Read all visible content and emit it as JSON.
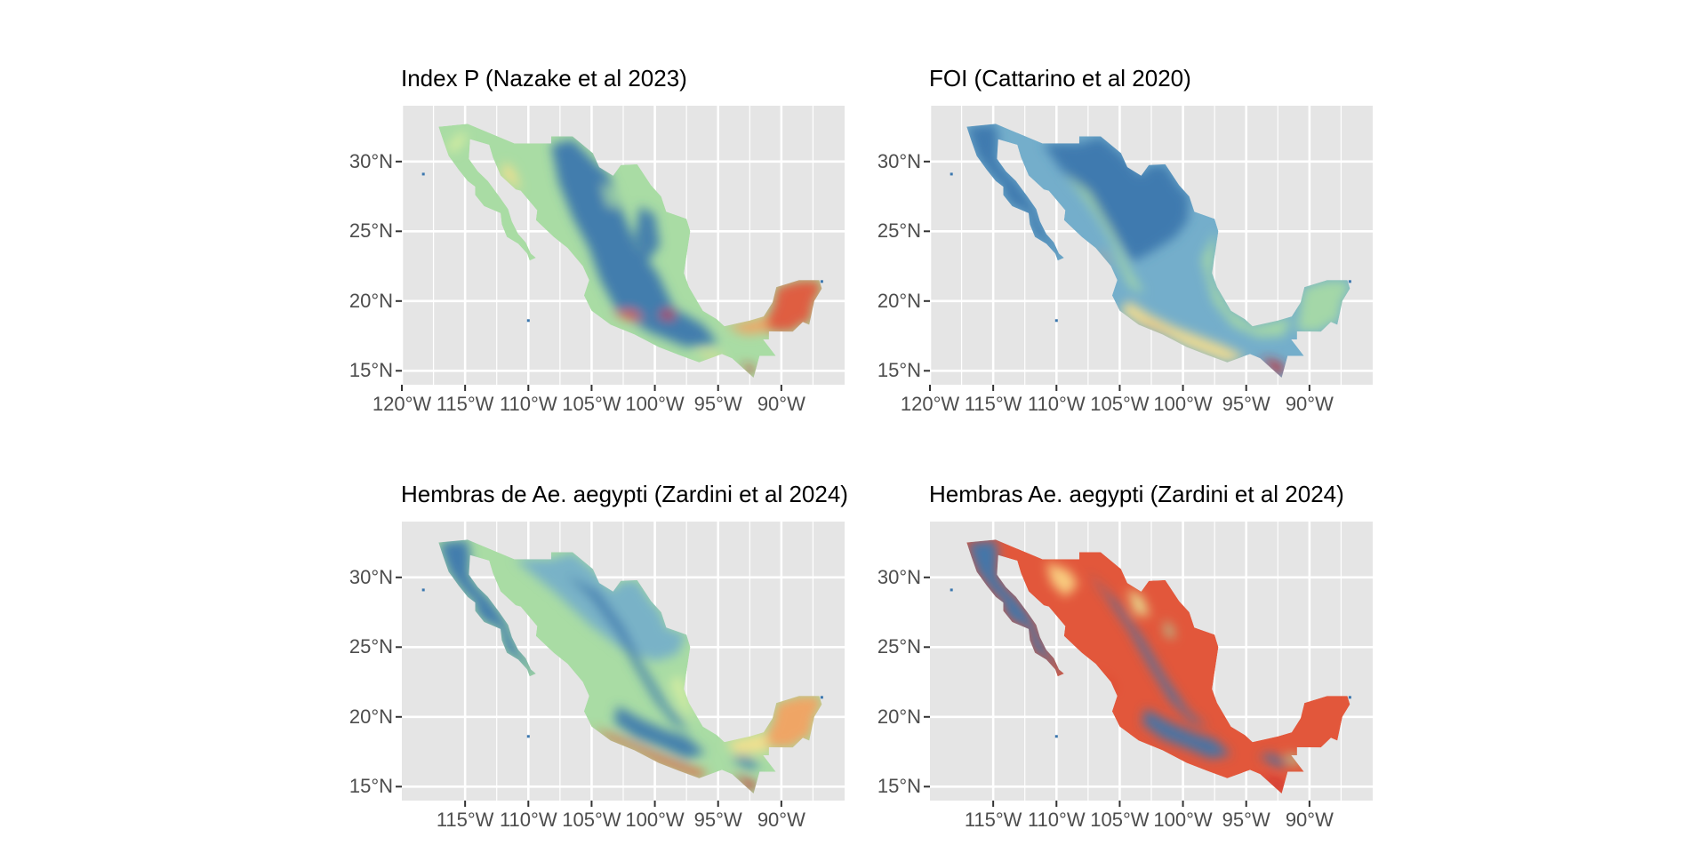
{
  "figure": {
    "colors": {
      "panel_background": "#e5e5e5",
      "gridline": "#ffffff",
      "tick_text": "#4d4d4d",
      "title_text": "#000000",
      "palette_spectral": [
        "#3b77ae",
        "#74aecb",
        "#a9dca4",
        "#e9f5a0",
        "#fde08b",
        "#f7a05e",
        "#e2573b",
        "#c8252e"
      ]
    },
    "panels": [
      {
        "id": "index-p",
        "title": "Index P (Nazake et al 2023)",
        "x_ticks": [
          "120°W",
          "115°W",
          "110°W",
          "105°W",
          "100°W",
          "95°W",
          "90°W"
        ],
        "y_ticks": [
          "30°N",
          "25°N",
          "20°N",
          "15°N"
        ],
        "x_tick_values": [
          -120,
          -115,
          -110,
          -105,
          -100,
          -95,
          -90
        ],
        "y_tick_values": [
          30,
          25,
          20,
          15
        ],
        "xlim": [
          -120,
          -85
        ],
        "ylim": [
          14,
          34
        ],
        "map_style": "index-p"
      },
      {
        "id": "foi",
        "title": "FOI (Cattarino et al 2020)",
        "x_ticks": [
          "120°W",
          "115°W",
          "110°W",
          "105°W",
          "100°W",
          "95°W",
          "90°W"
        ],
        "y_ticks": [
          "30°N",
          "25°N",
          "20°N",
          "15°N"
        ],
        "x_tick_values": [
          -120,
          -115,
          -110,
          -105,
          -100,
          -95,
          -90
        ],
        "y_tick_values": [
          30,
          25,
          20,
          15
        ],
        "xlim": [
          -120,
          -85
        ],
        "ylim": [
          14,
          34
        ],
        "map_style": "foi"
      },
      {
        "id": "hembras-de-aegypti",
        "title": "Hembras de Ae. aegypti (Zardini et al 2024)",
        "x_ticks": [
          "115°W",
          "110°W",
          "105°W",
          "100°W",
          "95°W",
          "90°W"
        ],
        "y_ticks": [
          "30°N",
          "25°N",
          "20°N",
          "15°N"
        ],
        "x_tick_values": [
          -115,
          -110,
          -105,
          -100,
          -95,
          -90
        ],
        "y_tick_values": [
          30,
          25,
          20,
          15
        ],
        "xlim": [
          -120,
          -85
        ],
        "ylim": [
          14,
          34
        ],
        "map_style": "hembras-de"
      },
      {
        "id": "hembras-aegypti",
        "title": "Hembras Ae. aegypti (Zardini et al 2024)",
        "x_ticks": [
          "115°W",
          "110°W",
          "105°W",
          "100°W",
          "95°W",
          "90°W"
        ],
        "y_ticks": [
          "30°N",
          "25°N",
          "20°N",
          "15°N"
        ],
        "x_tick_values": [
          -115,
          -110,
          -105,
          -100,
          -95,
          -90
        ],
        "y_tick_values": [
          30,
          25,
          20,
          15
        ],
        "xlim": [
          -120,
          -85
        ],
        "ylim": [
          14,
          34
        ],
        "map_style": "hembras"
      }
    ]
  }
}
